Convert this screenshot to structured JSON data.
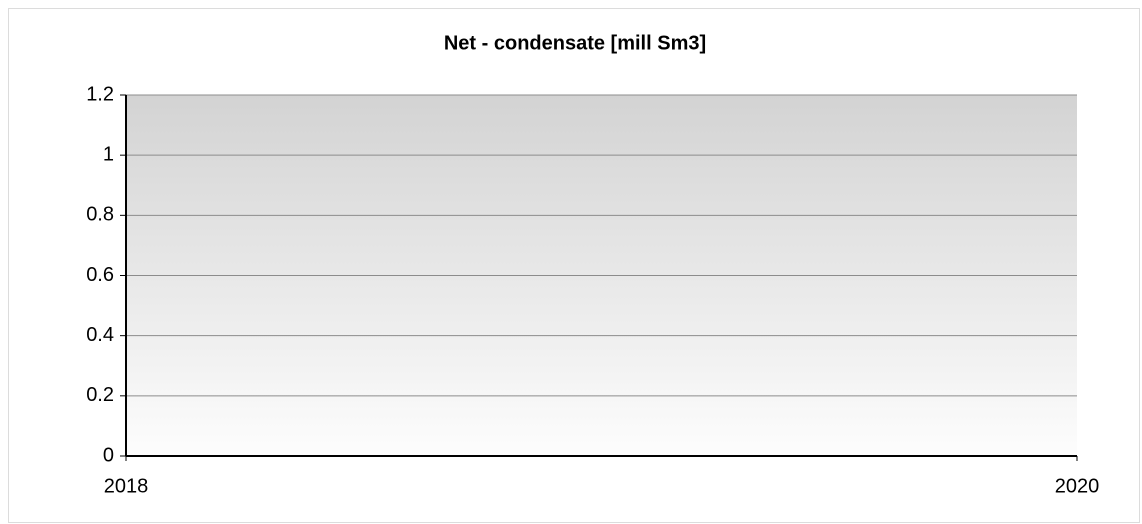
{
  "chart_data": {
    "type": "line",
    "title": "Net - condensate [mill Sm3]",
    "xlim": [
      2018,
      2020
    ],
    "xticks": [
      2018,
      2020
    ],
    "ylim": [
      0,
      1.2
    ],
    "yticks": [
      0,
      0.2,
      0.4,
      0.6,
      0.8,
      1,
      1.2
    ],
    "grid": true
  }
}
